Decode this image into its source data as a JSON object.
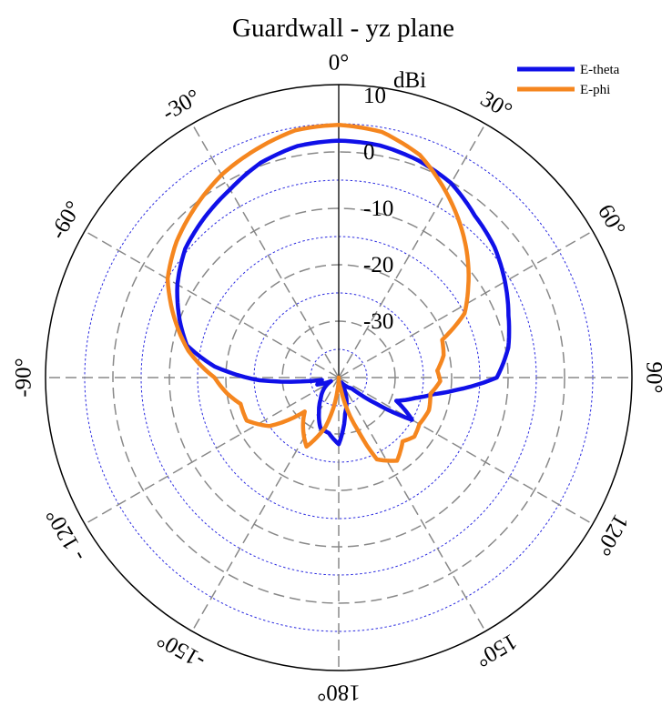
{
  "chart_data": {
    "type": "polar-line",
    "title": "Guardwall -  yz plane",
    "radial_unit": "dBi",
    "r_range": [
      -40,
      10
    ],
    "r_ticks": [
      {
        "value": 10,
        "label": "10"
      },
      {
        "value": 0,
        "label": "0"
      },
      {
        "value": -10,
        "label": "-10"
      },
      {
        "value": -20,
        "label": "-20"
      },
      {
        "value": -30,
        "label": "-30"
      }
    ],
    "angle_ticks": [
      {
        "value": 0,
        "label": "0°"
      },
      {
        "value": 30,
        "label": "30°"
      },
      {
        "value": 60,
        "label": "60°"
      },
      {
        "value": 90,
        "label": "90°"
      },
      {
        "value": 120,
        "label": "120°"
      },
      {
        "value": 150,
        "label": "150°"
      },
      {
        "value": 180,
        "label": "180°"
      },
      {
        "value": -150,
        "label": "-150°"
      },
      {
        "value": -120,
        "label": "- 120°"
      },
      {
        "value": -90,
        "label": "-90°"
      },
      {
        "value": -60,
        "label": "-60°"
      },
      {
        "value": -30,
        "label": "-30°"
      }
    ],
    "angle_zero": "top",
    "angle_direction": "clockwise",
    "grid": true,
    "legend_position": "top-right",
    "series": [
      {
        "name": "E-theta",
        "color": "#1010e8",
        "points": [
          [
            0,
            2
          ],
          [
            10,
            1.8
          ],
          [
            20,
            1
          ],
          [
            30,
            -0.2
          ],
          [
            40,
            -2.5
          ],
          [
            50,
            -4
          ],
          [
            60,
            -6
          ],
          [
            70,
            -8
          ],
          [
            80,
            -9.5
          ],
          [
            90,
            -12
          ],
          [
            96,
            -19
          ],
          [
            100,
            -23
          ],
          [
            105,
            -26
          ],
          [
            112,
            -29
          ],
          [
            120,
            -25
          ],
          [
            125,
            -32
          ],
          [
            130,
            -37
          ],
          [
            140,
            -38
          ],
          [
            150,
            -39
          ],
          [
            160,
            -36
          ],
          [
            170,
            -33.5
          ],
          [
            180,
            -28.2
          ],
          [
            190,
            -30
          ],
          [
            200,
            -30.5
          ],
          [
            210,
            -33
          ],
          [
            220,
            -35
          ],
          [
            235,
            -37
          ],
          [
            245,
            -38.5
          ],
          [
            252,
            -36
          ],
          [
            262,
            -37
          ],
          [
            268,
            -26
          ],
          [
            275,
            -18
          ],
          [
            282,
            -12.5
          ],
          [
            290,
            -10
          ],
          [
            300,
            -7
          ],
          [
            310,
            -4.5
          ],
          [
            320,
            -3
          ],
          [
            330,
            -1.5
          ],
          [
            340,
            0.5
          ],
          [
            350,
            1.7
          ],
          [
            360,
            2
          ]
        ]
      },
      {
        "name": "E-phi",
        "color": "#f5861f",
        "points": [
          [
            0,
            4.8
          ],
          [
            10,
            4.2
          ],
          [
            20,
            2
          ],
          [
            30,
            -2
          ],
          [
            40,
            -6
          ],
          [
            45,
            -8
          ],
          [
            55,
            -12
          ],
          [
            63,
            -15
          ],
          [
            70,
            -20.5
          ],
          [
            78,
            -21
          ],
          [
            86,
            -22.5
          ],
          [
            92,
            -22
          ],
          [
            100,
            -23.5
          ],
          [
            110,
            -23
          ],
          [
            120,
            -23.5
          ],
          [
            128,
            -23
          ],
          [
            135,
            -24
          ],
          [
            145,
            -22
          ],
          [
            155,
            -24
          ],
          [
            160,
            -30
          ],
          [
            170,
            -38
          ],
          [
            180,
            -40
          ],
          [
            185,
            -38
          ],
          [
            195,
            -31
          ],
          [
            205,
            -26.5
          ],
          [
            215,
            -29
          ],
          [
            225,
            -31.5
          ],
          [
            235,
            -25
          ],
          [
            245,
            -22
          ],
          [
            255,
            -22
          ],
          [
            262,
            -20
          ],
          [
            270,
            -18
          ],
          [
            280,
            -13
          ],
          [
            290,
            -9
          ],
          [
            300,
            -5
          ],
          [
            310,
            -2.5
          ],
          [
            320,
            -0.5
          ],
          [
            330,
            1.5
          ],
          [
            340,
            3
          ],
          [
            350,
            4.5
          ],
          [
            360,
            4.8
          ]
        ]
      }
    ]
  }
}
